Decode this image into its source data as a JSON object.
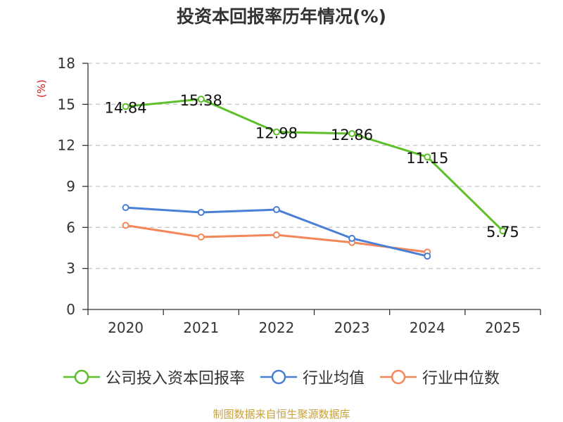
{
  "title": "投资本回报率历年情况(%)",
  "source": "制图数据来自恒生聚源数据库",
  "colors": {
    "company": "#5dbf2a",
    "industry_avg": "#4a7fd6",
    "industry_median": "#f4875a",
    "axis": "#333333",
    "ylabel": "#d62020"
  },
  "chart_data": {
    "type": "line",
    "categories": [
      "2020",
      "2021",
      "2022",
      "2023",
      "2024",
      "2025"
    ],
    "ylabel": "(%)",
    "ylim": [
      0,
      18
    ],
    "yticks": [
      0,
      3,
      6,
      9,
      12,
      15,
      18
    ],
    "grid": true,
    "legend_position": "bottom",
    "series": [
      {
        "key": "company",
        "name": "公司投入资本回报率",
        "values": [
          14.84,
          15.38,
          12.98,
          12.86,
          11.15,
          5.75
        ],
        "labels": [
          "14.84",
          "15.38",
          "12.98",
          "12.86",
          "11.15",
          "5.75"
        ]
      },
      {
        "key": "industry_avg",
        "name": "行业均值",
        "values": [
          7.45,
          7.1,
          7.3,
          5.2,
          3.9,
          null
        ]
      },
      {
        "key": "industry_median",
        "name": "行业中位数",
        "values": [
          6.15,
          5.3,
          5.45,
          4.9,
          4.2,
          null
        ]
      }
    ]
  }
}
